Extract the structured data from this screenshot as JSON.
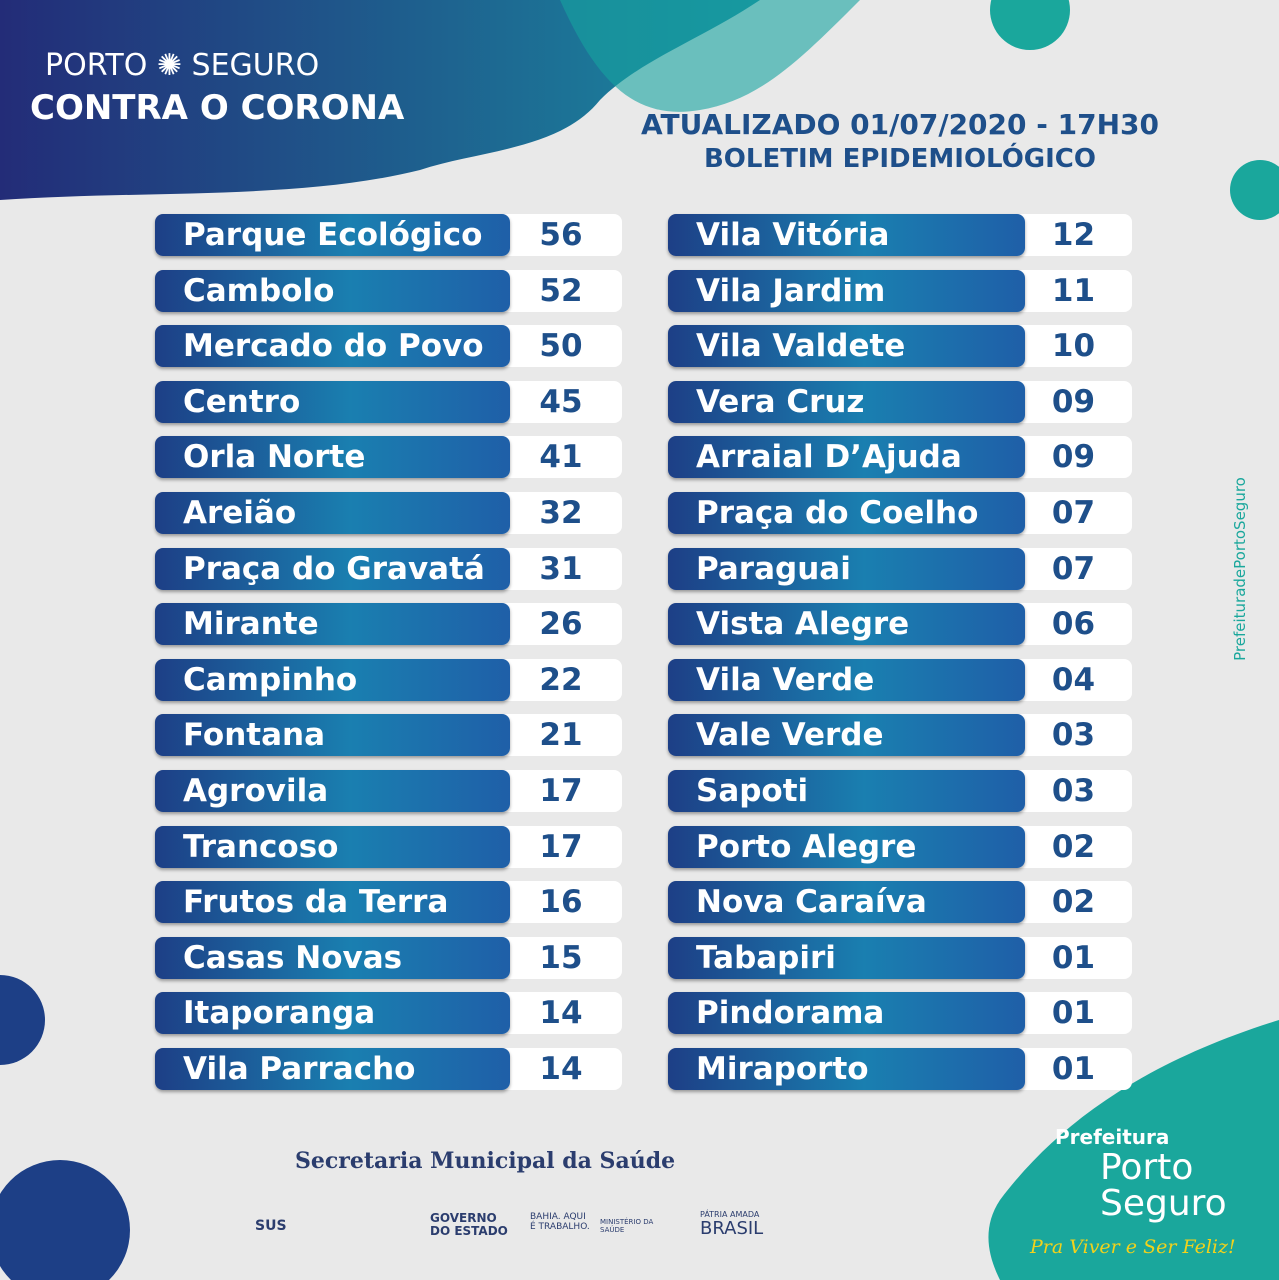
{
  "header": {
    "brand_left": "PORTO",
    "brand_right": "SEGURO",
    "slogan": "CONTRA O CORONA",
    "updated": "ATUALIZADO 01/07/2020 - 17H30",
    "title": "BOLETIM EPIDEMIOLÓGICO"
  },
  "table": {
    "left": [
      [
        "Parque Ecológico",
        "56"
      ],
      [
        "Cambolo",
        "52"
      ],
      [
        "Mercado do Povo",
        "50"
      ],
      [
        "Centro",
        "45"
      ],
      [
        "Orla Norte",
        "41"
      ],
      [
        "Areião",
        "32"
      ],
      [
        "Praça do Gravatá",
        "31"
      ],
      [
        "Mirante",
        "26"
      ],
      [
        "Campinho",
        "22"
      ],
      [
        "Fontana",
        "21"
      ],
      [
        "Agrovila",
        "17"
      ],
      [
        "Trancoso",
        "17"
      ],
      [
        "Frutos da Terra",
        "16"
      ],
      [
        "Casas Novas",
        "15"
      ],
      [
        "Itaporanga",
        "14"
      ],
      [
        "Vila Parracho",
        "14"
      ]
    ],
    "right": [
      [
        "Vila Vitória",
        "12"
      ],
      [
        "Vila Jardim",
        "11"
      ],
      [
        "Vila Valdete",
        "10"
      ],
      [
        "Vera Cruz",
        "09"
      ],
      [
        "Arraial D’Ajuda",
        "09"
      ],
      [
        "Praça do Coelho",
        "07"
      ],
      [
        "Paraguai",
        "07"
      ],
      [
        "Vista Alegre",
        "06"
      ],
      [
        "Vila Verde",
        "04"
      ],
      [
        "Vale Verde",
        "03"
      ],
      [
        "Sapoti",
        "03"
      ],
      [
        "Porto Alegre",
        "02"
      ],
      [
        "Nova Caraíva",
        "02"
      ],
      [
        "Tabapiri",
        "01"
      ],
      [
        "Pindorama",
        "01"
      ],
      [
        "Miraporto",
        "01"
      ]
    ]
  },
  "footer": {
    "secretaria": "Secretaria Municipal da Saúde",
    "sus": "SUS",
    "governo": "GOVERNO DO ESTADO",
    "bahia": "BAHIA. AQUI É TRABALHO.",
    "ministerio": "MINISTÉRIO DA SAÚDE",
    "patria": "PÁTRIA AMADA",
    "brasil": "BRASIL",
    "prefeitura": "Prefeitura",
    "porto_seguro": "Porto Seguro",
    "motto": "Pra Viver e Ser Feliz!",
    "social": "PrefeituradePortoSeguro"
  }
}
